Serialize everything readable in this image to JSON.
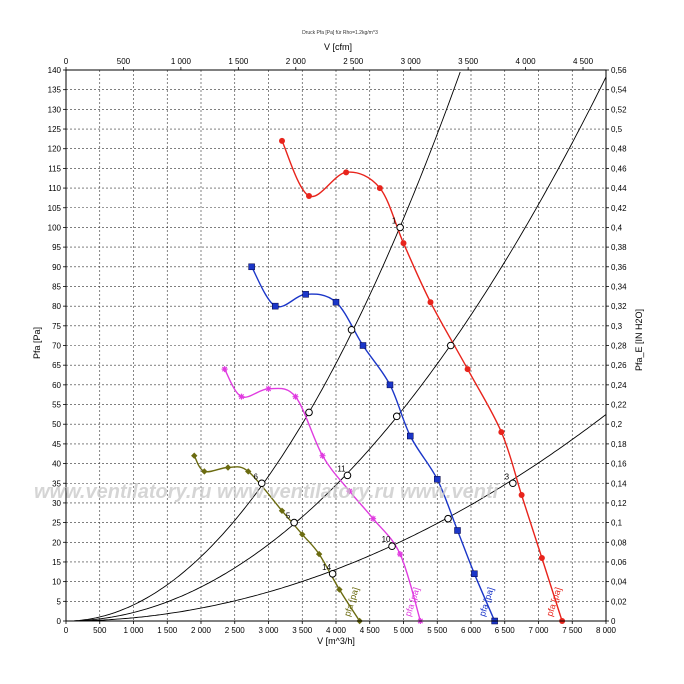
{
  "chart_data": {
    "type": "line",
    "title": "Druck Pfa [Pa] für Rho=1.2kg/m^3",
    "xlabel": "V [m^3/h]",
    "ylabel": "Pfa [Pa]",
    "x2label": "V [cfm]",
    "y2label": "Pfa_E [IN H2O]",
    "xlim": [
      0,
      8000
    ],
    "ylim": [
      0,
      140
    ],
    "x2lim": [
      0,
      4700
    ],
    "y2lim": [
      0,
      0.56
    ],
    "grid": true,
    "x_ticks": [
      "0",
      "500",
      "1 000",
      "1 500",
      "2 000",
      "2 500",
      "3 000",
      "3 500",
      "4 000",
      "4 500",
      "5 000",
      "5 500",
      "6 000",
      "6 500",
      "7 000",
      "7 500",
      "8 000"
    ],
    "y_ticks": [
      "0",
      "5",
      "10",
      "15",
      "20",
      "25",
      "30",
      "35",
      "40",
      "45",
      "50",
      "55",
      "60",
      "65",
      "70",
      "75",
      "80",
      "85",
      "90",
      "95",
      "100",
      "105",
      "110",
      "115",
      "120",
      "125",
      "130",
      "135",
      "140"
    ],
    "x2_ticks": [
      "0",
      "500",
      "1 000",
      "1 500",
      "2 000",
      "2 500",
      "3 000",
      "3 500",
      "4 000",
      "4 500"
    ],
    "y2_ticks": [
      "0",
      "0,02",
      "0,04",
      "0,06",
      "0,08",
      "0,1",
      "0,12",
      "0,14",
      "0,16",
      "0,18",
      "0,2",
      "0,22",
      "0,24",
      "0,26",
      "0,28",
      "0,3",
      "0,32",
      "0,34",
      "0,36",
      "0,38",
      "0,4",
      "0,42",
      "0,44",
      "0,46",
      "0,48",
      "0,5",
      "0,52",
      "0,54",
      "0,56"
    ],
    "series": [
      {
        "name": "Pfa [Pa]",
        "color": "#e8241c",
        "marker": "circle",
        "x": [
          3200,
          3600,
          4150,
          4650,
          5000,
          5400,
          5950,
          6450,
          6750,
          7050,
          7350
        ],
        "y": [
          122,
          108,
          114,
          110,
          96,
          81,
          64,
          48,
          32,
          16,
          0
        ]
      },
      {
        "name": "Pfa [Pa]",
        "color": "#1b36c8",
        "marker": "square",
        "x": [
          2750,
          3100,
          3550,
          4000,
          4400,
          4800,
          5100,
          5500,
          5800,
          6050,
          6350
        ],
        "y": [
          90,
          80,
          83,
          81,
          70,
          60,
          47,
          36,
          23,
          12,
          0
        ]
      },
      {
        "name": "Pfa [Pa]",
        "color": "#e03ce0",
        "marker": "star",
        "x": [
          2350,
          2600,
          3000,
          3400,
          3800,
          4200,
          4550,
          4950,
          5250
        ],
        "y": [
          64,
          57,
          59,
          57,
          42,
          33,
          26,
          17,
          0
        ]
      },
      {
        "name": "Pfa [Pa]",
        "color": "#6b6b10",
        "marker": "diamond",
        "x": [
          1900,
          2050,
          2400,
          2700,
          3200,
          3500,
          3750,
          4050,
          4350
        ],
        "y": [
          42,
          38,
          39,
          38,
          28,
          22,
          17,
          8,
          0
        ]
      }
    ],
    "system_curves": [
      {
        "k": 4.09e-06
      },
      {
        "k": 2.16e-06
      },
      {
        "k": 8.2e-07
      }
    ],
    "operating_points": [
      {
        "x": 4950,
        "y": 100,
        "label": "1"
      },
      {
        "x": 4230,
        "y": 74,
        "label": ""
      },
      {
        "x": 3600,
        "y": 53,
        "label": ""
      },
      {
        "x": 2900,
        "y": 35,
        "label": "6"
      },
      {
        "x": 5700,
        "y": 70,
        "label": ""
      },
      {
        "x": 4900,
        "y": 52,
        "label": ""
      },
      {
        "x": 4170,
        "y": 37,
        "label": "11"
      },
      {
        "x": 3380,
        "y": 25,
        "label": "5"
      },
      {
        "x": 6620,
        "y": 35,
        "label": "3"
      },
      {
        "x": 5660,
        "y": 26,
        "label": ""
      },
      {
        "x": 4830,
        "y": 19,
        "label": "10"
      },
      {
        "x": 3950,
        "y": 12,
        "label": "14"
      }
    ],
    "curve_end_labels": [
      {
        "text": "pfa [pa]",
        "color": "#e8241c"
      },
      {
        "text": "pfa [pa]",
        "color": "#1b36c8"
      },
      {
        "text": "pfa [pa]",
        "color": "#e03ce0"
      },
      {
        "text": "pfa [pa]",
        "color": "#6b6b10"
      }
    ],
    "watermark": "www.ventilatory.ru www.ventilatory.ru www.venti"
  }
}
